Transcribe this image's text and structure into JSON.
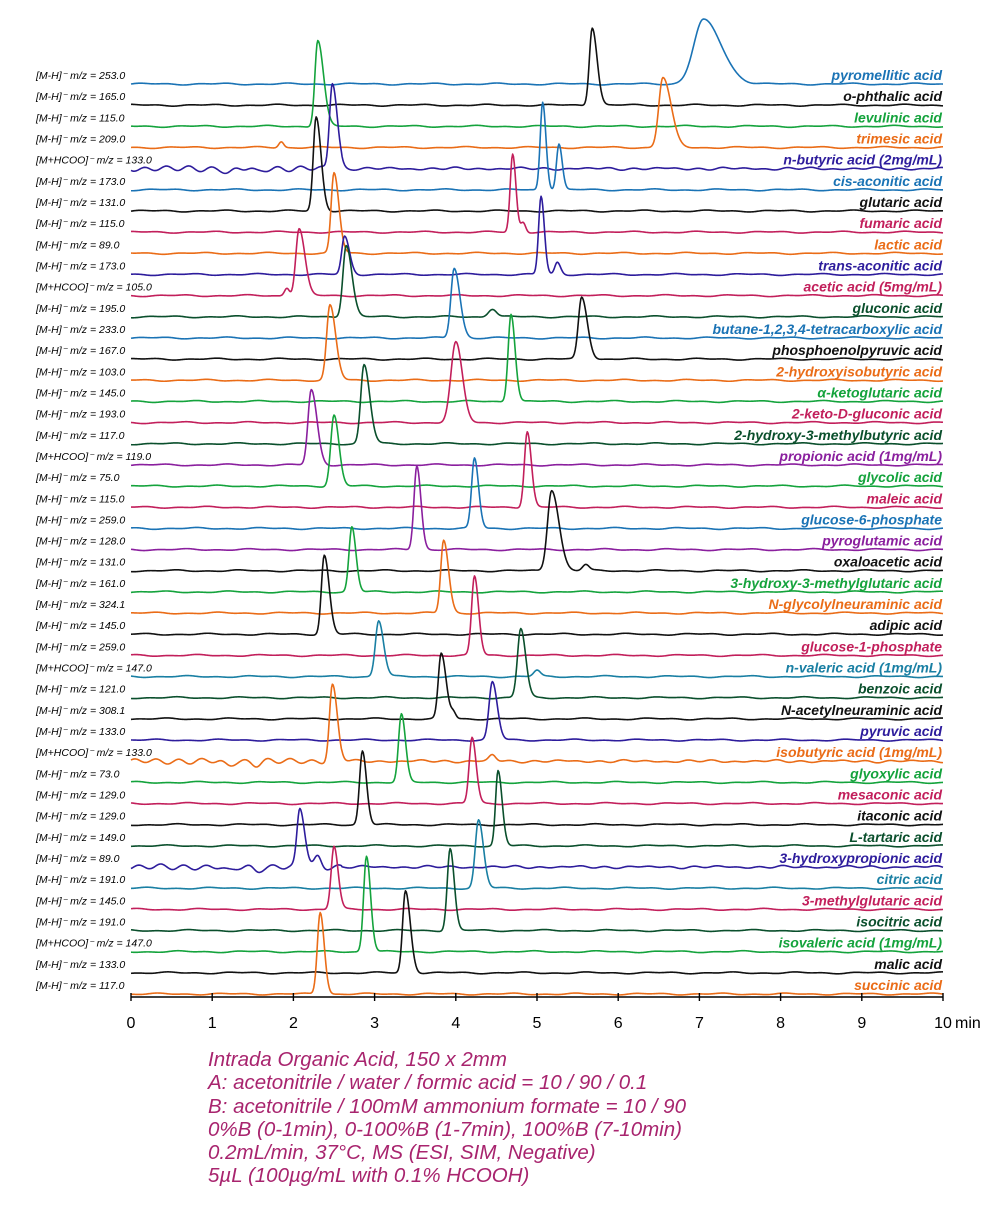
{
  "chart_data": {
    "type": "line",
    "x_unit": "min",
    "xlim": [
      0,
      10
    ],
    "x_ticks": [
      "0",
      "1",
      "2",
      "3",
      "4",
      "5",
      "6",
      "7",
      "8",
      "9",
      "10"
    ],
    "colors": {
      "blue": "#1a73b5",
      "black": "#111111",
      "green": "#14a33c",
      "orange": "#ea6c17",
      "indigo": "#2d1c9c",
      "crimson": "#c21f5b",
      "darkgreen": "#0a4f2c",
      "purple": "#8a1f9e",
      "teal": "#197fa3"
    },
    "traces": [
      {
        "mz": "[M-H]⁻ m/z = 253.0",
        "name": "pyromellitic acid",
        "color": "blue",
        "peaks": [
          [
            7.05,
            64,
            0.12,
            0.22
          ]
        ]
      },
      {
        "mz": "[M-H]⁻ m/z = 165.0",
        "name": "o-phthalic acid",
        "color": "black",
        "peaks": [
          [
            5.68,
            78,
            0.035,
            0.06
          ]
        ]
      },
      {
        "mz": "[M-H]⁻ m/z = 115.0",
        "name": "levulinic acid",
        "color": "green",
        "peaks": [
          [
            2.3,
            86,
            0.035,
            0.07
          ]
        ]
      },
      {
        "mz": "[M-H]⁻ m/z = 209.0",
        "name": "trimesic acid",
        "color": "orange",
        "peaks": [
          [
            6.55,
            70,
            0.05,
            0.1
          ],
          [
            1.85,
            6,
            0.03,
            0.03
          ]
        ]
      },
      {
        "mz": "[M+HCOO]⁻ m/z = 133.0",
        "name": "n-butyric acid (2mg/mL)",
        "color": "indigo",
        "noisy": true,
        "peaks": [
          [
            2.48,
            87,
            0.035,
            0.06
          ]
        ]
      },
      {
        "mz": "[M-H]⁻ m/z = 173.0",
        "name": "cis-aconitic acid",
        "color": "blue",
        "peaks": [
          [
            5.07,
            88,
            0.03,
            0.04
          ],
          [
            5.27,
            46,
            0.03,
            0.04
          ]
        ]
      },
      {
        "mz": "[M-H]⁻ m/z = 131.0",
        "name": "glutaric acid",
        "color": "black",
        "peaks": [
          [
            2.28,
            94,
            0.035,
            0.06
          ]
        ]
      },
      {
        "mz": "[M-H]⁻ m/z = 115.0",
        "name": "fumaric acid",
        "color": "crimson",
        "peaks": [
          [
            4.7,
            78,
            0.03,
            0.04
          ],
          [
            4.83,
            10,
            0.03,
            0.03
          ]
        ]
      },
      {
        "mz": "[M-H]⁻ m/z = 89.0",
        "name": "lactic acid",
        "color": "orange",
        "peaks": [
          [
            2.5,
            80,
            0.035,
            0.06
          ]
        ]
      },
      {
        "mz": "[M-H]⁻ m/z = 173.0",
        "name": "trans-aconitic acid",
        "color": "indigo",
        "peaks": [
          [
            2.63,
            38,
            0.035,
            0.06
          ],
          [
            5.05,
            78,
            0.03,
            0.04
          ],
          [
            5.25,
            12,
            0.03,
            0.04
          ]
        ]
      },
      {
        "mz": "[M+HCOO]⁻ m/z = 105.0",
        "name": "acetic acid (5mg/mL)",
        "color": "crimson",
        "peaks": [
          [
            2.07,
            67,
            0.04,
            0.07
          ],
          [
            1.92,
            8,
            0.03,
            0.03
          ]
        ]
      },
      {
        "mz": "[M-H]⁻ m/z = 195.0",
        "name": "gluconic acid",
        "color": "darkgreen",
        "peaks": [
          [
            2.65,
            72,
            0.04,
            0.07
          ],
          [
            4.45,
            8,
            0.05,
            0.05
          ]
        ]
      },
      {
        "mz": "[M-H]⁻ m/z = 233.0",
        "name": "butane-1,2,3,4-tetracarboxylic acid",
        "color": "blue",
        "peaks": [
          [
            3.98,
            70,
            0.04,
            0.07
          ]
        ]
      },
      {
        "mz": "[M-H]⁻ m/z = 167.0",
        "name": "phosphoenolpyruvic acid",
        "color": "black",
        "peaks": [
          [
            5.55,
            62,
            0.04,
            0.07
          ]
        ]
      },
      {
        "mz": "[M-H]⁻ m/z = 103.0",
        "name": "2-hydroxyisobutyric acid",
        "color": "orange",
        "peaks": [
          [
            2.45,
            75,
            0.04,
            0.07
          ]
        ]
      },
      {
        "mz": "[M-H]⁻ m/z = 145.0",
        "name": "α-ketoglutaric acid",
        "color": "green",
        "peaks": [
          [
            4.68,
            88,
            0.035,
            0.05
          ]
        ]
      },
      {
        "mz": "[M-H]⁻ m/z = 193.0",
        "name": "2-keto-D-gluconic acid",
        "color": "crimson",
        "peaks": [
          [
            4.0,
            80,
            0.06,
            0.08
          ]
        ]
      },
      {
        "mz": "[M-H]⁻ m/z = 117.0",
        "name": "2-hydroxy-3-methylbutyric acid",
        "color": "darkgreen",
        "peaks": [
          [
            2.87,
            79,
            0.04,
            0.07
          ]
        ]
      },
      {
        "mz": "[M+HCOO]⁻ m/z = 119.0",
        "name": "propionic acid (1mg/mL)",
        "color": "purple",
        "peaks": [
          [
            2.22,
            75,
            0.04,
            0.07
          ]
        ]
      },
      {
        "mz": "[M-H]⁻ m/z = 75.0",
        "name": "glycolic acid",
        "color": "green",
        "peaks": [
          [
            2.5,
            71,
            0.04,
            0.06
          ]
        ]
      },
      {
        "mz": "[M-H]⁻ m/z = 115.0",
        "name": "maleic acid",
        "color": "crimson",
        "peaks": [
          [
            4.88,
            76,
            0.035,
            0.05
          ]
        ]
      },
      {
        "mz": "[M-H]⁻ m/z = 259.0",
        "name": "glucose-6-phosphate",
        "color": "blue",
        "peaks": [
          [
            4.23,
            70,
            0.035,
            0.05
          ]
        ]
      },
      {
        "mz": "[M-H]⁻ m/z = 128.0",
        "name": "pyroglutamic acid",
        "color": "purple",
        "peaks": [
          [
            3.52,
            84,
            0.035,
            0.05
          ]
        ]
      },
      {
        "mz": "[M-H]⁻ m/z = 131.0",
        "name": "oxaloacetic acid",
        "color": "black",
        "peaks": [
          [
            5.18,
            81,
            0.05,
            0.09
          ],
          [
            5.6,
            6,
            0.04,
            0.04
          ]
        ]
      },
      {
        "mz": "[M-H]⁻ m/z = 161.0",
        "name": "3-hydroxy-3-methylglutaric acid",
        "color": "green",
        "peaks": [
          [
            2.72,
            65,
            0.035,
            0.05
          ]
        ]
      },
      {
        "mz": "[M-H]⁻ m/z = 324.1",
        "name": "N-glycolylneuraminic acid",
        "color": "orange",
        "peaks": [
          [
            3.85,
            73,
            0.035,
            0.06
          ]
        ]
      },
      {
        "mz": "[M-H]⁻ m/z = 145.0",
        "name": "adipic acid",
        "color": "black",
        "peaks": [
          [
            2.38,
            79,
            0.035,
            0.06
          ]
        ]
      },
      {
        "mz": "[M-H]⁻ m/z = 259.0",
        "name": "glucose-1-phosphate",
        "color": "crimson",
        "peaks": [
          [
            4.23,
            79,
            0.035,
            0.05
          ]
        ]
      },
      {
        "mz": "[M+HCOO]⁻ m/z = 147.0",
        "name": "n-valeric acid (1mg/mL)",
        "color": "teal",
        "peaks": [
          [
            3.05,
            56,
            0.04,
            0.06
          ],
          [
            5.0,
            6,
            0.04,
            0.04
          ]
        ]
      },
      {
        "mz": "[M-H]⁻ m/z = 121.0",
        "name": "benzoic acid",
        "color": "darkgreen",
        "peaks": [
          [
            4.8,
            69,
            0.04,
            0.06
          ]
        ]
      },
      {
        "mz": "[M-H]⁻ m/z = 308.1",
        "name": "N-acetylneuraminic acid",
        "color": "black",
        "peaks": [
          [
            3.82,
            65,
            0.035,
            0.06
          ],
          [
            3.97,
            6,
            0.03,
            0.03
          ]
        ]
      },
      {
        "mz": "[M-H]⁻ m/z = 133.0",
        "name": "pyruvic acid",
        "color": "indigo",
        "peaks": [
          [
            4.45,
            58,
            0.04,
            0.06
          ]
        ]
      },
      {
        "mz": "[M+HCOO]⁻ m/z = 133.0",
        "name": "isobutyric acid (1mg/mL)",
        "color": "orange",
        "noisy": true,
        "peaks": [
          [
            2.48,
            75,
            0.035,
            0.06
          ],
          [
            4.45,
            6,
            0.04,
            0.04
          ]
        ]
      },
      {
        "mz": "[M-H]⁻ m/z = 73.0",
        "name": "glyoxylic acid",
        "color": "green",
        "peaks": [
          [
            3.33,
            68,
            0.035,
            0.05
          ]
        ]
      },
      {
        "mz": "[M-H]⁻ m/z = 129.0",
        "name": "mesaconic acid",
        "color": "crimson",
        "peaks": [
          [
            4.2,
            66,
            0.035,
            0.05
          ]
        ]
      },
      {
        "mz": "[M-H]⁻ m/z = 129.0",
        "name": "itaconic acid",
        "color": "black",
        "peaks": [
          [
            2.85,
            74,
            0.035,
            0.05
          ]
        ]
      },
      {
        "mz": "[M-H]⁻ m/z = 149.0",
        "name": "L-tartaric acid",
        "color": "darkgreen",
        "peaks": [
          [
            4.52,
            75,
            0.03,
            0.05
          ]
        ]
      },
      {
        "mz": "[M-H]⁻ m/z = 89.0",
        "name": "3-hydroxypropionic acid",
        "color": "indigo",
        "noisy": true,
        "peaks": [
          [
            2.08,
            58,
            0.035,
            0.06
          ],
          [
            2.3,
            10,
            0.04,
            0.04
          ]
        ]
      },
      {
        "mz": "[M-H]⁻ m/z = 191.0",
        "name": "citric acid",
        "color": "teal",
        "peaks": [
          [
            4.28,
            68,
            0.04,
            0.06
          ]
        ]
      },
      {
        "mz": "[M-H]⁻ m/z = 145.0",
        "name": "3-methylglutaric acid",
        "color": "crimson",
        "peaks": [
          [
            2.5,
            63,
            0.035,
            0.05
          ]
        ]
      },
      {
        "mz": "[M-H]⁻ m/z = 191.0",
        "name": "isocitric acid",
        "color": "darkgreen",
        "peaks": [
          [
            3.93,
            82,
            0.035,
            0.05
          ]
        ]
      },
      {
        "mz": "[M+HCOO]⁻ m/z = 147.0",
        "name": "isovaleric acid (1mg/mL)",
        "color": "green",
        "peaks": [
          [
            2.9,
            96,
            0.035,
            0.05
          ]
        ]
      },
      {
        "mz": "[M-H]⁻ m/z = 133.0",
        "name": "malic acid",
        "color": "black",
        "peaks": [
          [
            3.38,
            82,
            0.035,
            0.06
          ]
        ]
      },
      {
        "mz": "[M-H]⁻ m/z = 117.0",
        "name": "succinic acid",
        "color": "orange",
        "peaks": [
          [
            2.33,
            82,
            0.035,
            0.05
          ]
        ]
      }
    ]
  },
  "conditions": [
    "Intrada Organic Acid, 150 x 2mm",
    "A: acetonitrile / water / formic acid = 10 / 90 / 0.1",
    "B: acetonitrile / 100mM ammonium formate = 10 / 90",
    "0%B (0-1min), 0-100%B (1-7min), 100%B (7-10min)",
    "0.2mL/min, 37°C, MS (ESI, SIM, Negative)",
    "5µL (100µg/mL with 0.1% HCOOH)"
  ]
}
